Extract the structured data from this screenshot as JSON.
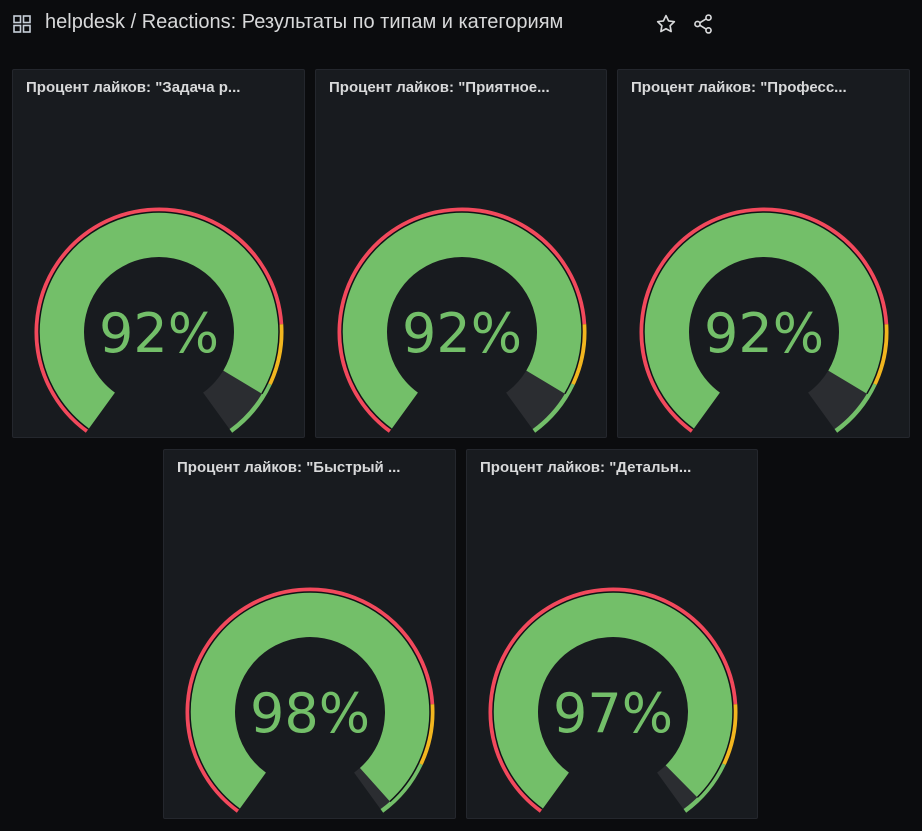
{
  "header": {
    "title": "helpdesk / Reactions: Результаты по типам и категориям",
    "dashboard_icon": "grid-icon",
    "star_icon": "star-icon",
    "share_icon": "share-icon"
  },
  "colors": {
    "background": "#0b0c0e",
    "panel": "#181b1f",
    "green": "#73bf69",
    "yellow": "#f2b61f",
    "red": "#f2495c",
    "gauge_empty": "#2b2d31"
  },
  "panels": [
    {
      "title": "Процент лайков: \"Задача р...",
      "value": 92,
      "display": "92%"
    },
    {
      "title": "Процент лайков: \"Приятное...",
      "value": 92,
      "display": "92%"
    },
    {
      "title": "Процент лайков: \"Професс...",
      "value": 92,
      "display": "92%"
    },
    {
      "title": "Процент лайков: \"Быстрый ...",
      "value": 98,
      "display": "98%"
    },
    {
      "title": "Процент лайков: \"Детальн...",
      "value": 97,
      "display": "97%"
    }
  ],
  "gauge": {
    "min": 0,
    "max": 100,
    "thresholds": [
      {
        "from": 0,
        "to": 80,
        "color": "#f2495c"
      },
      {
        "from": 80,
        "to": 90,
        "color": "#f2b61f"
      },
      {
        "from": 90,
        "to": 100,
        "color": "#73bf69"
      }
    ]
  }
}
